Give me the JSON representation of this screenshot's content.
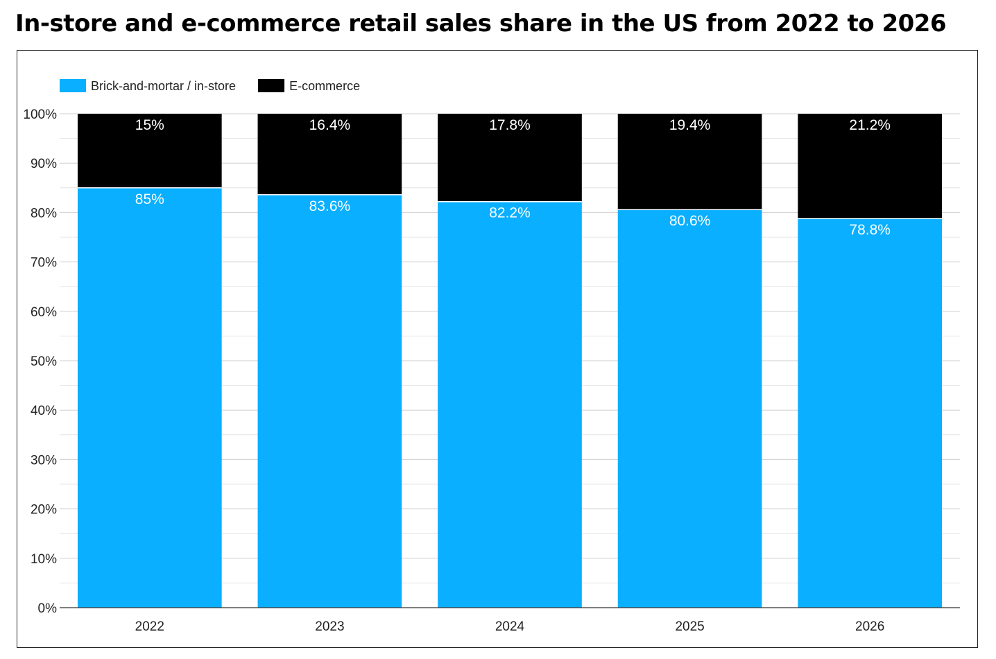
{
  "title": "In-store and e-commerce retail sales share in the US from 2022 to 2026",
  "chart_data": {
    "type": "bar",
    "stacked": true,
    "title": "In-store and e-commerce retail sales share in the US from 2022 to 2026",
    "categories": [
      "2022",
      "2023",
      "2024",
      "2025",
      "2026"
    ],
    "series": [
      {
        "name": "Brick-and-mortar / in-store",
        "color": "#0aafff",
        "values": [
          85,
          83.6,
          82.2,
          80.6,
          78.8
        ],
        "labels": [
          "85%",
          "83.6%",
          "82.2%",
          "80.6%",
          "78.8%"
        ]
      },
      {
        "name": "E-commerce",
        "color": "#000000",
        "values": [
          15,
          16.4,
          17.8,
          19.4,
          21.2
        ],
        "labels": [
          "15%",
          "16.4%",
          "17.8%",
          "19.4%",
          "21.2%"
        ]
      }
    ],
    "ylim": [
      0,
      100
    ],
    "yticks": [
      0,
      10,
      20,
      30,
      40,
      50,
      60,
      70,
      80,
      90,
      100
    ],
    "ytick_labels": [
      "0%",
      "10%",
      "20%",
      "30%",
      "40%",
      "50%",
      "60%",
      "70%",
      "80%",
      "90%",
      "100%"
    ],
    "xlabel": "",
    "ylabel": "",
    "grid": true,
    "legend_position": "top-left"
  }
}
